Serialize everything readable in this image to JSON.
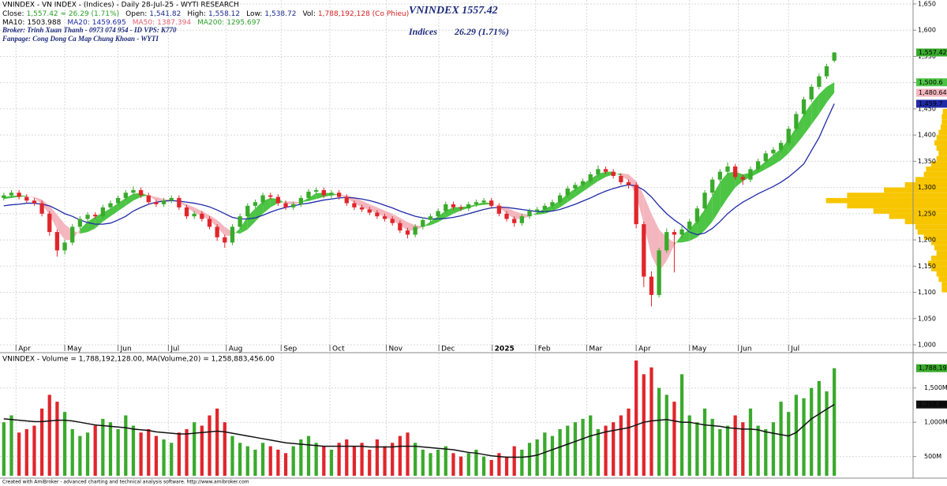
{
  "chart_data": {
    "type": "candlestick",
    "header": {
      "line1": "VNINDEX - VN INDEX - (Indices) - Daily 28-Jul-25 - WYTI RESEARCH",
      "line2": [
        {
          "text": "Close:",
          "color": "#000000"
        },
        {
          "text": "1,557.42  ≈  26.29 (1.71%)",
          "color": "#2aa02a"
        },
        {
          "text": "Open:",
          "color": "#000000"
        },
        {
          "text": "1,541.82",
          "color": "#1c2a8a"
        },
        {
          "text": "High:",
          "color": "#000000"
        },
        {
          "text": "1,558.12",
          "color": "#1c2a8a"
        },
        {
          "text": "Low:",
          "color": "#000000"
        },
        {
          "text": "1,538.72",
          "color": "#1c2a8a"
        },
        {
          "text": "Vol:",
          "color": "#000000"
        },
        {
          "text": "1,788,192,128 (Co Phieu)",
          "color": "#d42020"
        }
      ],
      "line3": [
        {
          "text": "MA10:",
          "color": "#000000"
        },
        {
          "text": "1503.988",
          "color": "#000000"
        },
        {
          "text": "MA20:",
          "color": "#1c2aa0"
        },
        {
          "text": "1459.695",
          "color": "#1c2aa0"
        },
        {
          "text": "MA50:",
          "color": "#e06070"
        },
        {
          "text": "1387.394",
          "color": "#e06070"
        },
        {
          "text": "MA200:",
          "color": "#2aa02a"
        },
        {
          "text": "1295.697",
          "color": "#2aa02a"
        }
      ],
      "broker": "Broker: Trinh Xuan Thanh - 0973 074 954 - ID VPS: K770",
      "fanpage": "Fanpage: Cong Dong Ca Map Chung Khoan - WYTI",
      "big_title": "VNINDEX 1557.42",
      "indices": "Indices",
      "change": "26.29 (1.71%)"
    },
    "candles": {
      "open": [
        1280,
        1285,
        1290,
        1282,
        1275,
        1270,
        1250,
        1215,
        1180,
        1195,
        1225,
        1240,
        1248,
        1245,
        1262,
        1270,
        1280,
        1290,
        1295,
        1285,
        1272,
        1268,
        1275,
        1280,
        1262,
        1245,
        1250,
        1240,
        1225,
        1205,
        1195,
        1225,
        1245,
        1265,
        1272,
        1285,
        1282,
        1270,
        1262,
        1268,
        1280,
        1292,
        1295,
        1285,
        1290,
        1282,
        1270,
        1262,
        1258,
        1252,
        1245,
        1240,
        1232,
        1218,
        1210,
        1225,
        1238,
        1245,
        1255,
        1268,
        1262,
        1260,
        1268,
        1272,
        1275,
        1265,
        1250,
        1240,
        1232,
        1245,
        1255,
        1258,
        1265,
        1272,
        1285,
        1298,
        1305,
        1312,
        1325,
        1335,
        1330,
        1322,
        1310,
        1305,
        1230,
        1130,
        1095,
        1180,
        1215,
        1210,
        1220,
        1235,
        1260,
        1290,
        1315,
        1330,
        1340,
        1320,
        1315,
        1335,
        1350,
        1365,
        1372,
        1385,
        1412,
        1440,
        1468,
        1492,
        1512,
        1541.82
      ],
      "high": [
        1290,
        1295,
        1295,
        1287,
        1280,
        1275,
        1255,
        1220,
        1200,
        1230,
        1245,
        1253,
        1253,
        1267,
        1275,
        1285,
        1295,
        1302,
        1300,
        1290,
        1277,
        1280,
        1285,
        1285,
        1267,
        1255,
        1255,
        1245,
        1230,
        1210,
        1230,
        1250,
        1270,
        1277,
        1290,
        1290,
        1287,
        1275,
        1273,
        1285,
        1297,
        1300,
        1300,
        1295,
        1295,
        1287,
        1275,
        1267,
        1263,
        1257,
        1250,
        1245,
        1237,
        1223,
        1230,
        1243,
        1250,
        1260,
        1273,
        1273,
        1267,
        1273,
        1277,
        1280,
        1280,
        1270,
        1255,
        1245,
        1250,
        1260,
        1263,
        1270,
        1277,
        1290,
        1303,
        1310,
        1317,
        1330,
        1342,
        1340,
        1335,
        1327,
        1315,
        1310,
        1235,
        1140,
        1185,
        1222,
        1220,
        1228,
        1240,
        1265,
        1295,
        1320,
        1335,
        1348,
        1345,
        1325,
        1340,
        1355,
        1370,
        1377,
        1390,
        1417,
        1445,
        1473,
        1497,
        1517,
        1536,
        1558.12
      ],
      "low": [
        1275,
        1280,
        1277,
        1270,
        1265,
        1245,
        1208,
        1168,
        1172,
        1190,
        1220,
        1235,
        1240,
        1240,
        1257,
        1265,
        1275,
        1285,
        1280,
        1267,
        1263,
        1263,
        1270,
        1257,
        1240,
        1240,
        1235,
        1220,
        1198,
        1185,
        1190,
        1220,
        1240,
        1260,
        1267,
        1277,
        1265,
        1257,
        1257,
        1263,
        1275,
        1287,
        1280,
        1280,
        1277,
        1265,
        1257,
        1253,
        1247,
        1240,
        1235,
        1227,
        1213,
        1203,
        1205,
        1220,
        1233,
        1240,
        1250,
        1257,
        1255,
        1255,
        1263,
        1267,
        1260,
        1245,
        1235,
        1225,
        1227,
        1240,
        1250,
        1253,
        1260,
        1267,
        1280,
        1293,
        1300,
        1307,
        1320,
        1325,
        1317,
        1305,
        1298,
        1222,
        1110,
        1073,
        1090,
        1175,
        1138,
        1203,
        1215,
        1230,
        1255,
        1285,
        1310,
        1325,
        1315,
        1305,
        1310,
        1330,
        1345,
        1360,
        1367,
        1380,
        1407,
        1435,
        1463,
        1487,
        1507,
        1538.72
      ],
      "close": [
        1285,
        1290,
        1282,
        1275,
        1270,
        1250,
        1215,
        1180,
        1195,
        1225,
        1240,
        1248,
        1245,
        1262,
        1270,
        1280,
        1290,
        1295,
        1285,
        1272,
        1268,
        1275,
        1280,
        1262,
        1245,
        1250,
        1240,
        1225,
        1205,
        1195,
        1225,
        1245,
        1265,
        1272,
        1285,
        1282,
        1270,
        1262,
        1268,
        1280,
        1292,
        1295,
        1285,
        1290,
        1282,
        1270,
        1262,
        1258,
        1252,
        1245,
        1240,
        1232,
        1218,
        1210,
        1225,
        1238,
        1245,
        1255,
        1268,
        1262,
        1260,
        1268,
        1272,
        1275,
        1265,
        1250,
        1240,
        1232,
        1245,
        1255,
        1258,
        1265,
        1272,
        1285,
        1298,
        1305,
        1312,
        1325,
        1335,
        1330,
        1322,
        1310,
        1305,
        1230,
        1130,
        1095,
        1180,
        1215,
        1210,
        1220,
        1235,
        1260,
        1290,
        1315,
        1330,
        1340,
        1320,
        1315,
        1335,
        1350,
        1365,
        1372,
        1385,
        1412,
        1440,
        1468,
        1492,
        1512,
        1531.13,
        1557.42
      ],
      "up_color": "#3aaa2c",
      "down_color": "#e0262c"
    },
    "ma_fast": [
      1282,
      1284,
      1285,
      1284,
      1280,
      1268,
      1248,
      1220,
      1200,
      1200,
      1220,
      1235,
      1244,
      1252,
      1260,
      1270,
      1280,
      1288,
      1290,
      1284,
      1275,
      1272,
      1274,
      1272,
      1262,
      1252,
      1245,
      1238,
      1224,
      1208,
      1208,
      1222,
      1245,
      1260,
      1274,
      1280,
      1278,
      1270,
      1267,
      1272,
      1280,
      1289,
      1290,
      1289,
      1286,
      1280,
      1270,
      1262,
      1257,
      1250,
      1244,
      1237,
      1228,
      1218,
      1218,
      1225,
      1235,
      1245,
      1256,
      1262,
      1263,
      1264,
      1268,
      1272,
      1270,
      1262,
      1250,
      1240,
      1240,
      1245,
      1252,
      1260,
      1266,
      1275,
      1288,
      1298,
      1307,
      1316,
      1326,
      1330,
      1330,
      1322,
      1313,
      1285,
      1230,
      1170,
      1140,
      1160,
      1190,
      1210,
      1220,
      1238,
      1258,
      1285,
      1310,
      1328,
      1330,
      1325,
      1328,
      1338,
      1350,
      1362,
      1374,
      1392,
      1415,
      1440,
      1460,
      1478,
      1492,
      1500.6
    ],
    "ma_slow": [
      1278,
      1280,
      1282,
      1283,
      1282,
      1277,
      1265,
      1248,
      1230,
      1218,
      1212,
      1215,
      1222,
      1235,
      1245,
      1255,
      1265,
      1275,
      1282,
      1285,
      1282,
      1278,
      1276,
      1274,
      1268,
      1262,
      1255,
      1247,
      1238,
      1225,
      1215,
      1212,
      1220,
      1235,
      1250,
      1262,
      1270,
      1273,
      1273,
      1272,
      1274,
      1278,
      1282,
      1285,
      1286,
      1285,
      1281,
      1275,
      1268,
      1262,
      1256,
      1250,
      1242,
      1234,
      1228,
      1226,
      1228,
      1234,
      1242,
      1250,
      1256,
      1261,
      1265,
      1267,
      1268,
      1266,
      1262,
      1255,
      1250,
      1248,
      1248,
      1250,
      1255,
      1262,
      1272,
      1282,
      1292,
      1302,
      1312,
      1320,
      1325,
      1327,
      1325,
      1312,
      1285,
      1250,
      1220,
      1205,
      1195,
      1195,
      1198,
      1205,
      1218,
      1235,
      1258,
      1280,
      1300,
      1312,
      1320,
      1327,
      1335,
      1343,
      1352,
      1365,
      1382,
      1400,
      1420,
      1440,
      1462,
      1480.64
    ],
    "ma_blue": [
      1265,
      1267,
      1268,
      1270,
      1270,
      1268,
      1265,
      1258,
      1250,
      1245,
      1238,
      1233,
      1230,
      1230,
      1232,
      1238,
      1245,
      1255,
      1262,
      1268,
      1272,
      1274,
      1275,
      1274,
      1272,
      1270,
      1267,
      1263,
      1257,
      1250,
      1243,
      1240,
      1240,
      1242,
      1247,
      1253,
      1258,
      1262,
      1265,
      1268,
      1270,
      1273,
      1276,
      1278,
      1280,
      1281,
      1280,
      1278,
      1275,
      1271,
      1266,
      1261,
      1255,
      1250,
      1245,
      1242,
      1240,
      1240,
      1241,
      1243,
      1246,
      1250,
      1254,
      1258,
      1261,
      1262,
      1262,
      1260,
      1258,
      1256,
      1254,
      1254,
      1255,
      1258,
      1263,
      1268,
      1274,
      1280,
      1287,
      1293,
      1298,
      1302,
      1305,
      1303,
      1295,
      1282,
      1265,
      1250,
      1238,
      1228,
      1215,
      1210,
      1213,
      1222,
      1235,
      1250,
      1262,
      1272,
      1280,
      1288,
      1295,
      1302,
      1310,
      1320,
      1332,
      1345,
      1370,
      1395,
      1428,
      1459.7
    ],
    "band_up_color": "#4cc444",
    "band_down_color": "#f4b6be",
    "blue_color": "#1f2aa8",
    "last_labels": {
      "close": "1,557.42",
      "fast": "1,500.6",
      "slow": "1,480.64",
      "blue": "1,459.7"
    },
    "ylim": [
      1000,
      1650
    ],
    "yticks": [
      {
        "value": 1000,
        "label": "1,000"
      },
      {
        "value": 1050,
        "label": "1,050"
      },
      {
        "value": 1100,
        "label": "1,100"
      },
      {
        "value": 1150,
        "label": "1,150"
      },
      {
        "value": 1200,
        "label": "1,200"
      },
      {
        "value": 1250,
        "label": "1,250"
      },
      {
        "value": 1300,
        "label": "1,300"
      },
      {
        "value": 1350,
        "label": "1,350"
      },
      {
        "value": 1400,
        "label": "1,400"
      },
      {
        "value": 1450,
        "label": "1,450"
      },
      {
        "value": 1500,
        "label": "1,500"
      },
      {
        "value": 1550,
        "label": "1,550"
      },
      {
        "value": 1600,
        "label": "1,600"
      },
      {
        "value": 1650,
        "label": "1,650"
      }
    ],
    "xticks": [
      {
        "value": 1.6,
        "label": "Apr"
      },
      {
        "value": 8,
        "label": "May"
      },
      {
        "value": 15,
        "label": "Jun"
      },
      {
        "value": 21.6,
        "label": "Jul"
      },
      {
        "value": 29.2,
        "label": "Aug"
      },
      {
        "value": 36.4,
        "label": "Sep"
      },
      {
        "value": 42.8,
        "label": "Oct"
      },
      {
        "value": 50.2,
        "label": "Nov"
      },
      {
        "value": 57.1,
        "label": "Dec"
      },
      {
        "value": 64.1,
        "label": "2025"
      },
      {
        "value": 69.8,
        "label": "Feb"
      },
      {
        "value": 76.5,
        "label": "Mar"
      },
      {
        "value": 83,
        "label": "Apr"
      },
      {
        "value": 90,
        "label": "May"
      },
      {
        "value": 96.4,
        "label": "Jun"
      },
      {
        "value": 103,
        "label": "Jul"
      }
    ],
    "grid": true,
    "volume": {
      "header": "VNINDEX - Volume = 1,788,192,128.00, MA(Volume,20) = 1,258,883,456.00",
      "values": [
        1000,
        1100,
        850,
        900,
        950,
        1200,
        1400,
        1300,
        1150,
        900,
        800,
        850,
        950,
        1050,
        1000,
        900,
        1100,
        950,
        850,
        900,
        800,
        750,
        700,
        850,
        900,
        1000,
        950,
        1100,
        1200,
        1000,
        800,
        700,
        650,
        600,
        700,
        650,
        600,
        550,
        650,
        750,
        800,
        700,
        650,
        600,
        700,
        750,
        650,
        700,
        600,
        750,
        650,
        700,
        800,
        850,
        700,
        600,
        550,
        600,
        650,
        550,
        500,
        550,
        600,
        500,
        450,
        550,
        500,
        650,
        600,
        700,
        750,
        850,
        800,
        900,
        950,
        1000,
        1050,
        1100,
        900,
        950,
        1000,
        1100,
        1200,
        1900,
        1700,
        1800,
        1500,
        1400,
        1300,
        1700,
        1100,
        1000,
        1200,
        1050,
        900,
        950,
        1100,
        1000,
        1200,
        950,
        900,
        1000,
        1300,
        1150,
        1400,
        1350,
        1500,
        1600,
        1450,
        1788.19
      ],
      "ma": [
        1050,
        1040,
        1030,
        1020,
        1010,
        1010,
        1020,
        1030,
        1030,
        1020,
        1000,
        980,
        960,
        950,
        940,
        930,
        920,
        900,
        890,
        880,
        860,
        850,
        840,
        830,
        830,
        840,
        850,
        860,
        870,
        860,
        840,
        820,
        800,
        780,
        760,
        740,
        720,
        700,
        690,
        680,
        670,
        660,
        650,
        650,
        650,
        650,
        650,
        650,
        640,
        640,
        640,
        640,
        650,
        650,
        650,
        640,
        630,
        620,
        610,
        600,
        580,
        560,
        550,
        530,
        510,
        500,
        490,
        490,
        490,
        500,
        520,
        560,
        600,
        640,
        680,
        720,
        760,
        800,
        830,
        860,
        880,
        900,
        920,
        960,
        1000,
        1020,
        1030,
        1040,
        1020,
        1000,
        1000,
        980,
        960,
        950,
        940,
        920,
        910,
        900,
        900,
        890,
        860,
        840,
        820,
        800,
        850,
        950,
        1050,
        1120,
        1190,
        1258.88
      ],
      "ma_color": "#111111",
      "last_labels": {
        "value": "1,788,19",
        "ma": "1,258,88"
      },
      "ylim": [
        220,
        1980
      ],
      "yticks": [
        {
          "value": 500,
          "label": "500M"
        },
        {
          "value": 1000,
          "label": "1,000M"
        },
        {
          "value": 1500,
          "label": "1,500M"
        }
      ]
    },
    "volume_profile": {
      "bins": [
        1100,
        1110,
        1120,
        1130,
        1140,
        1150,
        1160,
        1170,
        1180,
        1190,
        1200,
        1210,
        1220,
        1230,
        1240,
        1250,
        1260,
        1270,
        1280,
        1290,
        1300,
        1310,
        1320,
        1330,
        1340,
        1350,
        1360,
        1370,
        1380,
        1390,
        1400,
        1410,
        1420,
        1430,
        1440,
        1450
      ],
      "values": [
        5,
        5,
        8,
        10,
        15,
        18,
        15,
        10,
        12,
        15,
        22,
        28,
        30,
        40,
        55,
        70,
        95,
        115,
        95,
        60,
        40,
        30,
        22,
        20,
        15,
        10,
        8,
        10,
        12,
        10,
        8,
        6,
        5,
        5,
        4
      ],
      "xlim": [
        0,
        120
      ],
      "color": "#f7c600"
    },
    "footer": "Created with AmiBroker - advanced charting and technical analysis software. http://www.amibroker.com"
  }
}
